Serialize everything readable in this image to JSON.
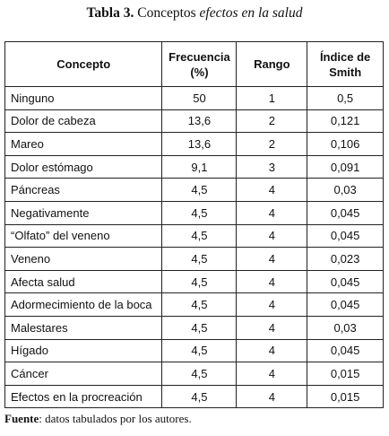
{
  "title": {
    "label": "Tabla 3.",
    "text": "Conceptos",
    "italic": "efectos en la salud"
  },
  "table": {
    "headers": [
      "Concepto",
      "Frecuencia (%)",
      "Rango",
      "Índice de Smith"
    ],
    "rows": [
      [
        "Ninguno",
        "50",
        "1",
        "0,5"
      ],
      [
        "Dolor de cabeza",
        "13,6",
        "2",
        "0,121"
      ],
      [
        "Mareo",
        "13,6",
        "2",
        "0,106"
      ],
      [
        "Dolor estómago",
        "9,1",
        "3",
        "0,091"
      ],
      [
        "Páncreas",
        "4,5",
        "4",
        "0,03"
      ],
      [
        "Negativamente",
        "4,5",
        "4",
        "0,045"
      ],
      [
        "“Olfato” del veneno",
        "4,5",
        "4",
        "0,045"
      ],
      [
        "Veneno",
        "4,5",
        "4",
        "0,023"
      ],
      [
        "Afecta salud",
        "4,5",
        "4",
        "0,045"
      ],
      [
        "Adormecimiento de la boca",
        "4,5",
        "4",
        "0,045"
      ],
      [
        "Malestares",
        "4,5",
        "4",
        "0,03"
      ],
      [
        "Hígado",
        "4,5",
        "4",
        "0,045"
      ],
      [
        "Cáncer",
        "4,5",
        "4",
        "0,015"
      ],
      [
        "Efectos en la procreación",
        "4,5",
        "4",
        "0,015"
      ]
    ]
  },
  "source": {
    "label": "Fuente",
    "text": ": datos tabulados por los autores."
  }
}
